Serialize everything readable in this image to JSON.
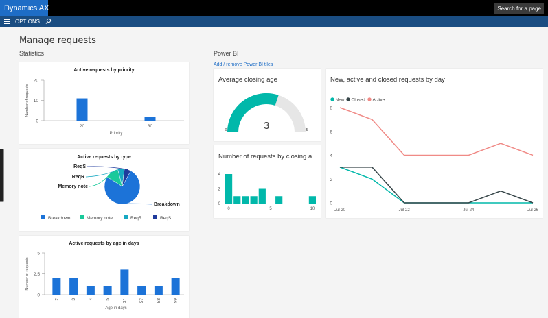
{
  "app": {
    "title": "Dynamics AX",
    "search_placeholder": "Search for a page",
    "options_label": "OPTIONS"
  },
  "page": {
    "title": "Manage requests",
    "statistics_label": "Statistics",
    "powerbi_label": "Power BI",
    "powerbi_link": "Add / remove Power BI tiles"
  },
  "icons": {
    "menu": "hamburger-icon",
    "search": "search-icon"
  },
  "colors": {
    "brand": "#1e6dc6",
    "actionbar": "#1a4d82",
    "bar": "#1c73d8",
    "teal": "#01b8aa",
    "gray": "#e6e6e6",
    "dark": "#374649",
    "salmon": "#f08a86"
  },
  "charts": {
    "priority": {
      "title": "Active requests by priority",
      "ylabel": "Number of requests",
      "xlabel": "Priority",
      "ymax": 20,
      "yticks": [
        "20",
        "10",
        "0"
      ],
      "categories": [
        "20",
        "30"
      ],
      "values": [
        11,
        2
      ]
    },
    "type": {
      "title": "Active requests by type",
      "slices": [
        {
          "label": "Breakdown",
          "value": 76,
          "color": "#1c73d8"
        },
        {
          "label": "Memory note",
          "value": 12,
          "color": "#19c99a"
        },
        {
          "label": "ReqR",
          "value": 6,
          "color": "#17a8c2"
        },
        {
          "label": "ReqS",
          "value": 6,
          "color": "#1f3a9c"
        }
      ]
    },
    "age": {
      "title": "Active requests by age in days",
      "ylabel": "Number of requests",
      "xlabel": "Age in days",
      "ymax": 5,
      "yticks": [
        "5",
        "2.5",
        "0"
      ],
      "categories": [
        "2",
        "3",
        "4",
        "5",
        "31",
        "57",
        "58",
        "59"
      ],
      "values": [
        2,
        2,
        1,
        1,
        3,
        1,
        1,
        2
      ]
    },
    "avg_closing": {
      "title": "Average closing age",
      "value": "3",
      "min": "0",
      "max": "5",
      "fraction": 0.6
    },
    "closing_age": {
      "title": "Number of requests by closing a...",
      "yticks": [
        "4",
        "2",
        "0"
      ],
      "ymax": 4,
      "xticks": [
        "0",
        "5",
        "10"
      ],
      "values": [
        4,
        1,
        1,
        1,
        2,
        0,
        1,
        0,
        0,
        0,
        1
      ]
    },
    "by_day": {
      "title": "New, active and closed requests by day",
      "legend": [
        "New",
        "Closed",
        "Active"
      ],
      "yticks": [
        "8",
        "6",
        "4",
        "2",
        "0"
      ],
      "ymax": 8,
      "xticks": [
        "Jul 20",
        "Jul 22",
        "Jul 24",
        "Jul 26"
      ],
      "series": [
        {
          "name": "New",
          "color": "#01b8aa",
          "values": [
            3,
            2,
            0,
            0,
            0,
            0,
            0
          ]
        },
        {
          "name": "Closed",
          "color": "#374649",
          "values": [
            3,
            3,
            0,
            0,
            0,
            1,
            0
          ]
        },
        {
          "name": "Active",
          "color": "#f08a86",
          "values": [
            8,
            7,
            4,
            4,
            4,
            5,
            4
          ]
        }
      ]
    }
  },
  "chart_data": [
    {
      "type": "bar",
      "title": "Active requests by priority",
      "categories": [
        "20",
        "30"
      ],
      "values": [
        11,
        2
      ],
      "xlabel": "Priority",
      "ylabel": "Number of requests",
      "ylim": [
        0,
        20
      ]
    },
    {
      "type": "pie",
      "title": "Active requests by type",
      "categories": [
        "Breakdown",
        "Memory note",
        "ReqR",
        "ReqS"
      ],
      "values": [
        76,
        12,
        6,
        6
      ]
    },
    {
      "type": "bar",
      "title": "Active requests by age in days",
      "categories": [
        "2",
        "3",
        "4",
        "5",
        "31",
        "57",
        "58",
        "59"
      ],
      "values": [
        2,
        2,
        1,
        1,
        3,
        1,
        1,
        2
      ],
      "xlabel": "Age in days",
      "ylabel": "Number of requests",
      "ylim": [
        0,
        5
      ]
    },
    {
      "type": "bar",
      "title": "Number of requests by closing age",
      "x": [
        0,
        1,
        2,
        3,
        4,
        5,
        6,
        7,
        8,
        9,
        10
      ],
      "values": [
        4,
        1,
        1,
        1,
        2,
        0,
        1,
        0,
        0,
        0,
        1
      ],
      "ylim": [
        0,
        4
      ]
    },
    {
      "type": "line",
      "title": "New, active and closed requests by day",
      "x": [
        "Jul 20",
        "Jul 21",
        "Jul 22",
        "Jul 23",
        "Jul 24",
        "Jul 25",
        "Jul 26"
      ],
      "series": [
        {
          "name": "New",
          "values": [
            3,
            2,
            0,
            0,
            0,
            0,
            0
          ]
        },
        {
          "name": "Closed",
          "values": [
            3,
            3,
            0,
            0,
            0,
            1,
            0
          ]
        },
        {
          "name": "Active",
          "values": [
            8,
            7,
            4,
            4,
            4,
            5,
            4
          ]
        }
      ],
      "ylim": [
        0,
        8
      ]
    }
  ]
}
